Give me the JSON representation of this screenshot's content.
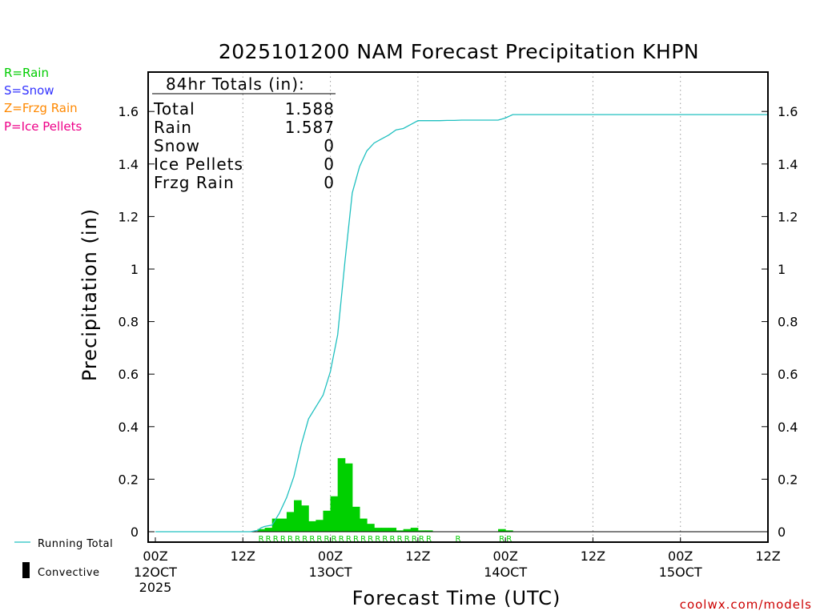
{
  "chart_data": {
    "type": "bar",
    "title": "2025101200 NAM Forecast Precipitation KHPN",
    "xlabel": "Forecast Time (UTC)",
    "ylabel": "Precipitation (in)",
    "ylim": [
      -0.04,
      1.76
    ],
    "xlim_hours": [
      0,
      84
    ],
    "y_ticks": [
      0,
      0.2,
      0.4,
      0.6,
      0.8,
      1,
      1.2,
      1.4,
      1.6
    ],
    "y_tick_labels": [
      "0",
      "0.2",
      "0.4",
      "0.6",
      "0.8",
      "1",
      "1.2",
      "1.4",
      "1.6"
    ],
    "x_ticks": [
      {
        "hour": 0,
        "line1": "00Z",
        "line2": "12OCT",
        "line3": "2025"
      },
      {
        "hour": 12,
        "line1": "12Z",
        "line2": "",
        "line3": ""
      },
      {
        "hour": 24,
        "line1": "00Z",
        "line2": "13OCT",
        "line3": ""
      },
      {
        "hour": 36,
        "line1": "12Z",
        "line2": "",
        "line3": ""
      },
      {
        "hour": 48,
        "line1": "00Z",
        "line2": "14OCT",
        "line3": ""
      },
      {
        "hour": 60,
        "line1": "12Z",
        "line2": "",
        "line3": ""
      },
      {
        "hour": 72,
        "line1": "00Z",
        "line2": "15OCT",
        "line3": ""
      },
      {
        "hour": 84,
        "line1": "12Z",
        "line2": "",
        "line3": ""
      }
    ],
    "bars_hourly": {
      "name": "Hourly precipitation (in)",
      "hours": [
        15,
        16,
        17,
        18,
        19,
        20,
        21,
        22,
        23,
        24,
        25,
        26,
        27,
        28,
        29,
        30,
        31,
        32,
        33,
        34,
        35,
        36,
        37,
        38,
        48,
        49
      ],
      "values": [
        0.01,
        0.015,
        0.05,
        0.05,
        0.075,
        0.12,
        0.1,
        0.04,
        0.045,
        0.08,
        0.135,
        0.28,
        0.26,
        0.095,
        0.05,
        0.03,
        0.015,
        0.015,
        0.015,
        0.005,
        0.01,
        0.015,
        0.005,
        0.005,
        0.01,
        0.005
      ]
    },
    "running_total": {
      "name": "Running Total",
      "hours": [
        0,
        13,
        14,
        14.5,
        15,
        16,
        17,
        18,
        19,
        20,
        21,
        22,
        23,
        24,
        25,
        26,
        27,
        28,
        29,
        30,
        31,
        32,
        33,
        34,
        35,
        36,
        37,
        38,
        39,
        40,
        41,
        42,
        43,
        44,
        45,
        46,
        47,
        48,
        49,
        50,
        60,
        70,
        84
      ],
      "values": [
        0,
        0,
        0.005,
        0.015,
        0.02,
        0.025,
        0.07,
        0.13,
        0.21,
        0.33,
        0.43,
        0.475,
        0.52,
        0.61,
        0.75,
        1.03,
        1.29,
        1.39,
        1.45,
        1.48,
        1.495,
        1.51,
        1.53,
        1.535,
        1.55,
        1.565,
        1.565,
        1.565,
        1.565,
        1.566,
        1.566,
        1.567,
        1.567,
        1.567,
        1.567,
        1.567,
        1.567,
        1.575,
        1.588,
        1.588,
        1.588,
        1.588,
        1.588
      ]
    },
    "ptype_markers": [
      {
        "type": "R",
        "hours": [
          15,
          16,
          17,
          18,
          19,
          20,
          21,
          22,
          23,
          24,
          25,
          26,
          27,
          28,
          29,
          30,
          31,
          32,
          33,
          34,
          35,
          36,
          37,
          38,
          42,
          48,
          49
        ]
      }
    ],
    "totals_box": {
      "heading": "84hr Totals (in):",
      "rows": [
        {
          "label": "Total",
          "value": "1.588"
        },
        {
          "label": "Rain",
          "value": "1.587"
        },
        {
          "label": "Snow",
          "value": "0"
        },
        {
          "label": "Ice Pellets",
          "value": "0"
        },
        {
          "label": "Frzg Rain",
          "value": "0"
        }
      ]
    },
    "legend": {
      "running_total_label": "Running Total",
      "convective_label": "Convective"
    }
  },
  "ptype_legend": {
    "rain": "R=Rain",
    "snow": "S=Snow",
    "frzg": "Z=Frzg Rain",
    "ice": "P=Ice Pellets"
  },
  "credit": "coolwx.com/models",
  "colors": {
    "bars": "#00d000",
    "running_total": "#20c0c0",
    "rain": "#00cc00",
    "snow": "#3333ff",
    "frzg": "#ff8800",
    "ice": "#ee0088",
    "credit": "#cc0000",
    "grid": "#999999"
  }
}
